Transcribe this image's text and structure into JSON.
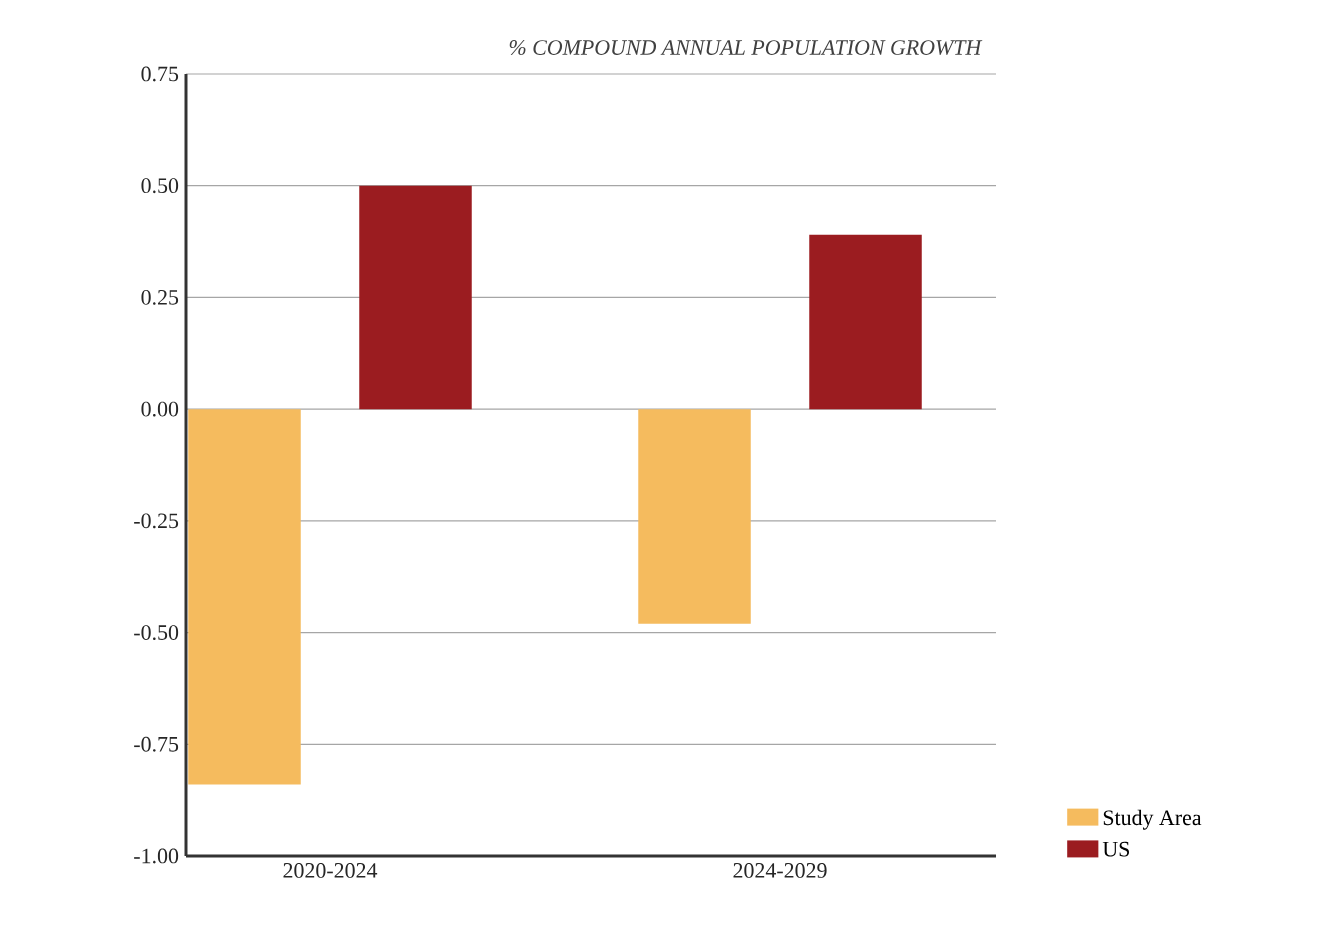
{
  "chart_data": {
    "type": "bar",
    "title": "% COMPOUND ANNUAL POPULATION GROWTH",
    "categories": [
      "2020-2024",
      "2024-2029"
    ],
    "series": [
      {
        "name": "Study Area",
        "color": "#f5bb5e",
        "values": [
          -0.84,
          -0.48
        ]
      },
      {
        "name": "US",
        "color": "#9b1c20",
        "values": [
          0.5,
          0.39
        ]
      }
    ],
    "ylim": [
      -1.0,
      0.75
    ],
    "yticks": [
      {
        "value": 0.75,
        "label": "0.75"
      },
      {
        "value": 0.5,
        "label": "0.50"
      },
      {
        "value": 0.25,
        "label": "0.25"
      },
      {
        "value": 0,
        "label": "0.00"
      },
      {
        "value": -0.25,
        "label": "-0.25"
      },
      {
        "value": -0.5,
        "label": "-0.50"
      },
      {
        "value": -0.75,
        "label": "-0.75"
      },
      {
        "value": -1.0,
        "label": "-1.00"
      }
    ],
    "grid": "y",
    "legend": "bottom right"
  }
}
